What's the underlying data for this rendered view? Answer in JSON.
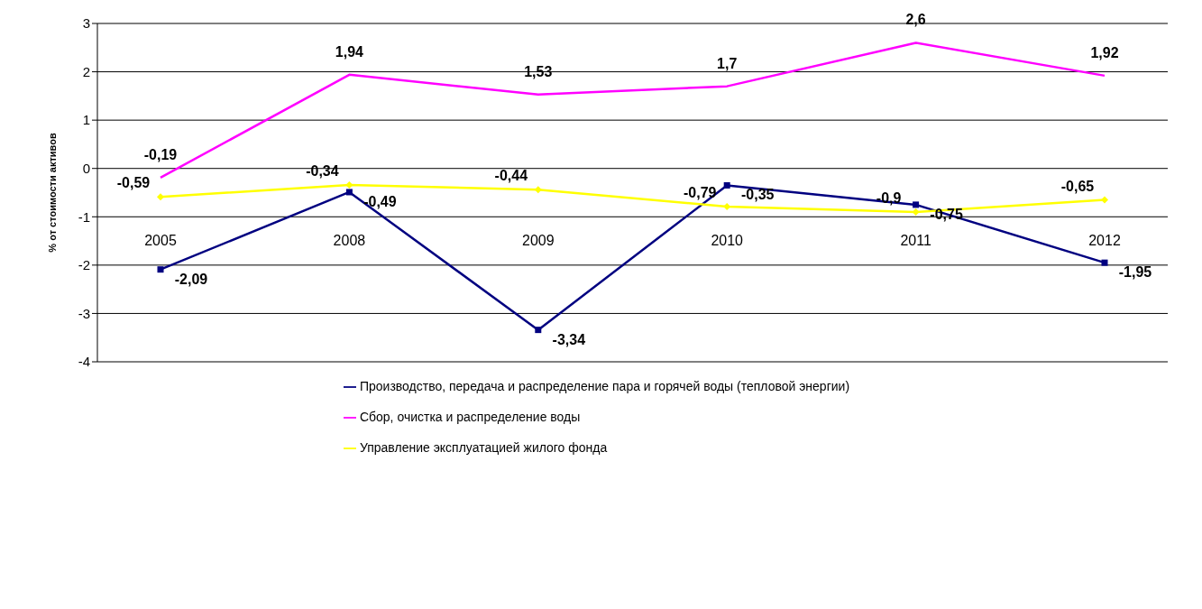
{
  "chart_data": {
    "type": "line",
    "ylabel": "% от стоимости активов",
    "categories": [
      "2005",
      "2008",
      "2009",
      "2010",
      "2011",
      "2012"
    ],
    "series": [
      {
        "name": "Производство, передача и распределение пара и горячей воды (тепловой  энергии)",
        "color": "#000080",
        "marker": "square",
        "values": [
          -2.09,
          -0.49,
          -3.34,
          -0.35,
          -0.75,
          -1.95
        ],
        "value_labels": [
          "-2,09",
          "-0,49",
          "-3,34",
          "-0,35",
          "-0,75",
          "-1,95"
        ]
      },
      {
        "name": "Сбор, очистка и  распределение воды",
        "color": "#ff00ff",
        "marker": "none",
        "values": [
          -0.19,
          1.94,
          1.53,
          1.7,
          2.6,
          1.92
        ],
        "value_labels": [
          "-0,19",
          "1,94",
          "1,53",
          "1,7",
          "2,6",
          "1,92"
        ]
      },
      {
        "name": "Управление эксплуатацией жилого фонда",
        "color": "#ffff00",
        "marker": "diamond",
        "values": [
          -0.59,
          -0.34,
          -0.44,
          -0.79,
          -0.9,
          -0.65
        ],
        "value_labels": [
          "-0,59",
          "-0,34",
          "-0,44",
          "-0,79",
          "-0,9",
          "-0,65"
        ]
      }
    ],
    "ylim": [
      -4,
      3
    ],
    "yticks": [
      -4,
      -3,
      -2,
      -1,
      0,
      1,
      2,
      3
    ],
    "grid": "y",
    "legend": "bottom"
  }
}
